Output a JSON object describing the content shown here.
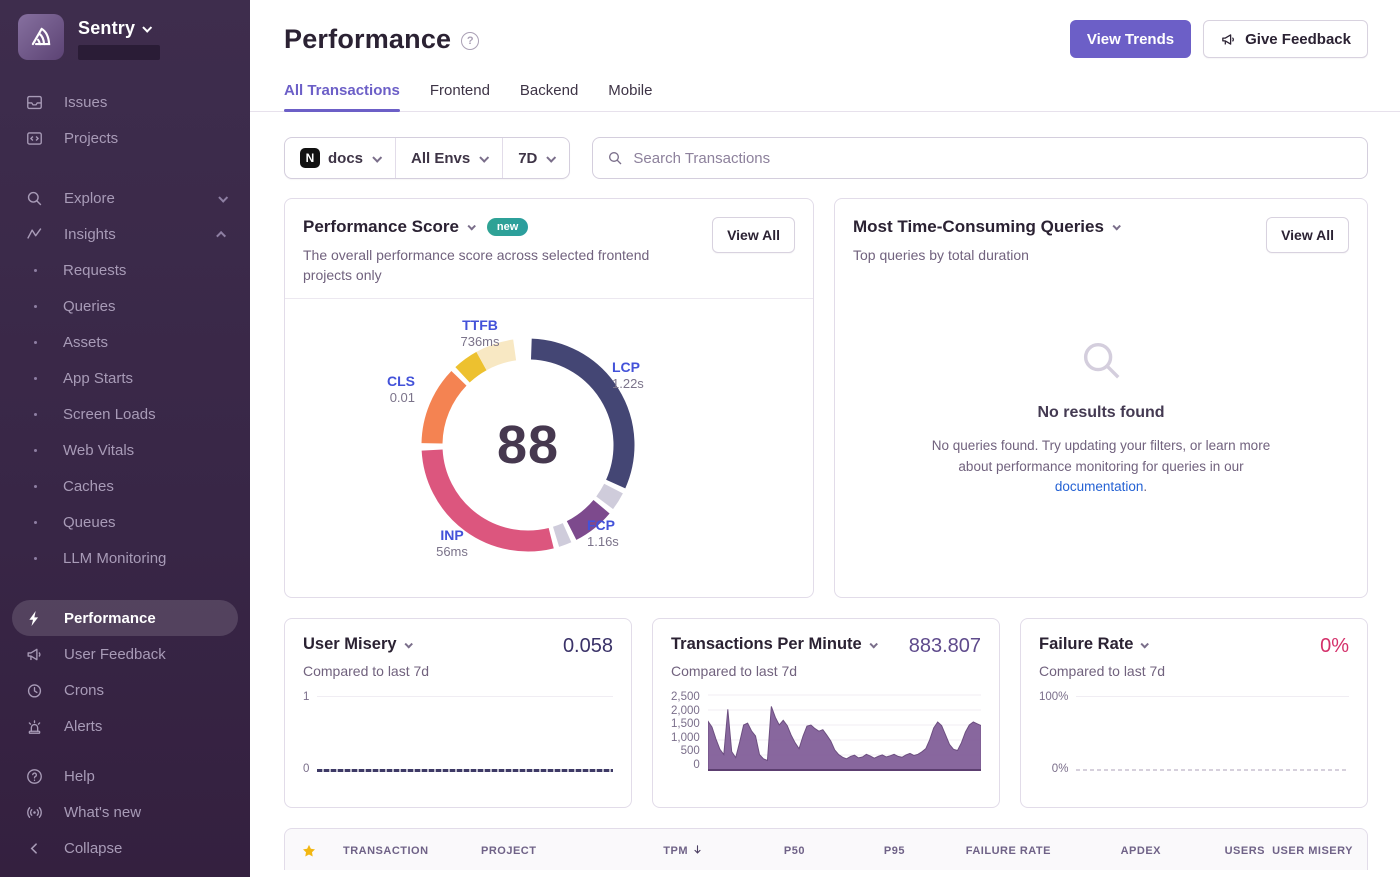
{
  "sidebar": {
    "brand": {
      "name": "Sentry"
    },
    "primary": [
      {
        "label": "Issues"
      },
      {
        "label": "Projects"
      }
    ],
    "groups": [
      {
        "label": "Explore"
      },
      {
        "label": "Insights"
      }
    ],
    "insights_children": [
      "Requests",
      "Queries",
      "Assets",
      "App Starts",
      "Screen Loads",
      "Web Vitals",
      "Caches",
      "Queues",
      "LLM Monitoring"
    ],
    "tools": [
      {
        "label": "Performance"
      },
      {
        "label": "User Feedback"
      },
      {
        "label": "Crons"
      },
      {
        "label": "Alerts"
      }
    ],
    "support": [
      {
        "label": "Help"
      },
      {
        "label": "What's new"
      }
    ],
    "collapse_label": "Collapse"
  },
  "header": {
    "title": "Performance",
    "view_trends_label": "View Trends",
    "give_feedback_label": "Give Feedback"
  },
  "tabs": [
    {
      "label": "All Transactions"
    },
    {
      "label": "Frontend"
    },
    {
      "label": "Backend"
    },
    {
      "label": "Mobile"
    }
  ],
  "filters": {
    "project": "docs",
    "environment": "All Envs",
    "date_range": "7D",
    "search_placeholder": "Search Transactions"
  },
  "performance_score_card": {
    "title": "Performance Score",
    "badge": "new",
    "subtitle": "The overall performance score across selected frontend projects only",
    "view_all_label": "View All",
    "score": "88",
    "vitals": [
      {
        "name": "TTFB",
        "value": "736ms"
      },
      {
        "name": "LCP",
        "value": "1.22s"
      },
      {
        "name": "CLS",
        "value": "0.01"
      },
      {
        "name": "INP",
        "value": "56ms"
      },
      {
        "name": "FCP",
        "value": "1.16s"
      }
    ]
  },
  "queries_card": {
    "title": "Most Time-Consuming Queries",
    "subtitle": "Top queries by total duration",
    "view_all_label": "View All",
    "empty_title": "No results found",
    "empty_body_1": "No queries found. Try updating your filters, or learn more about performance monitoring for queries in our ",
    "empty_link": "documentation",
    "empty_body_2": "."
  },
  "mini_cards": [
    {
      "title": "User Misery",
      "subtitle": "Compared to last 7d",
      "value": "0.058",
      "y_max": "1",
      "y_min": "0"
    },
    {
      "title": "Transactions Per Minute",
      "subtitle": "Compared to last 7d",
      "value": "883.807"
    },
    {
      "title": "Failure Rate",
      "subtitle": "Compared to last 7d",
      "value": "0%",
      "y_max": "100%",
      "y_min": "0%"
    }
  ],
  "table": {
    "columns": [
      "TRANSACTION",
      "PROJECT",
      "TPM",
      "P50",
      "P95",
      "FAILURE RATE",
      "APDEX",
      "USERS",
      "USER MISERY"
    ],
    "sorted_column": "TPM",
    "sort_direction": "desc"
  },
  "colors": {
    "accent": "#6C5FC7",
    "sidebar_bg": "#3B2B48",
    "badge_teal": "#2FA394",
    "link_blue": "#2562D4",
    "failure_pink": "#D4306A",
    "tpm_fill": "#7E5A96"
  },
  "chart_data": [
    {
      "id": "web-vitals-ring",
      "type": "pie",
      "title": "Performance Score",
      "center_value": 88,
      "segments": [
        {
          "name": "LCP",
          "value": "1.22s",
          "color": "#444674",
          "start_deg": 2,
          "end_deg": 114
        },
        {
          "name": "divider",
          "color": "#cfccdb",
          "start_deg": 117,
          "end_deg": 127
        },
        {
          "name": "FCP",
          "value": "1.16s",
          "color": "#7d4a8d",
          "start_deg": 130,
          "end_deg": 153
        },
        {
          "name": "divider",
          "color": "#cfccdb",
          "start_deg": 156,
          "end_deg": 163
        },
        {
          "name": "INP",
          "value": "56ms",
          "color": "#dc567e",
          "start_deg": 166,
          "end_deg": 267
        },
        {
          "name": "CLS",
          "value": "0.01",
          "color": "#f48352",
          "start_deg": 271,
          "end_deg": 314
        },
        {
          "name": "TTFB",
          "value": "736ms",
          "color": "#edc12f",
          "start_deg": 317,
          "end_deg": 331
        },
        {
          "name": "TTFB",
          "value": "736ms",
          "color": "#f8e8c3",
          "start_deg": 331,
          "end_deg": 352
        }
      ]
    },
    {
      "id": "tpm",
      "type": "area",
      "title": "Transactions Per Minute",
      "current": 883.807,
      "ylim": [
        0,
        2500
      ],
      "yticks": [
        "2,500",
        "2,000",
        "1,500",
        "1,000",
        "500",
        "0"
      ],
      "values": [
        1650,
        1450,
        1050,
        700,
        520,
        2050,
        620,
        420,
        950,
        1520,
        1580,
        1320,
        1150,
        520,
        380,
        320,
        2150,
        1780,
        1520,
        1680,
        1500,
        1180,
        920,
        720,
        1150,
        1480,
        1520,
        1400,
        1310,
        1360,
        1180,
        980,
        680,
        520,
        430,
        380,
        460,
        500,
        410,
        440,
        530,
        470,
        400,
        460,
        510,
        440,
        480,
        530,
        460,
        430,
        510,
        560,
        490,
        530,
        610,
        720,
        1020,
        1420,
        1620,
        1500,
        1180,
        860,
        700,
        660,
        920,
        1280,
        1520,
        1620,
        1560,
        1500
      ]
    },
    {
      "id": "user-misery",
      "type": "line",
      "title": "User Misery",
      "current": 0.058,
      "ylim": [
        0,
        1
      ],
      "values": [
        0.058,
        0.058
      ]
    },
    {
      "id": "failure-rate",
      "type": "line",
      "title": "Failure Rate",
      "current": 0,
      "ylim_labels": [
        "0%",
        "100%"
      ],
      "values": [
        0,
        0
      ]
    }
  ]
}
